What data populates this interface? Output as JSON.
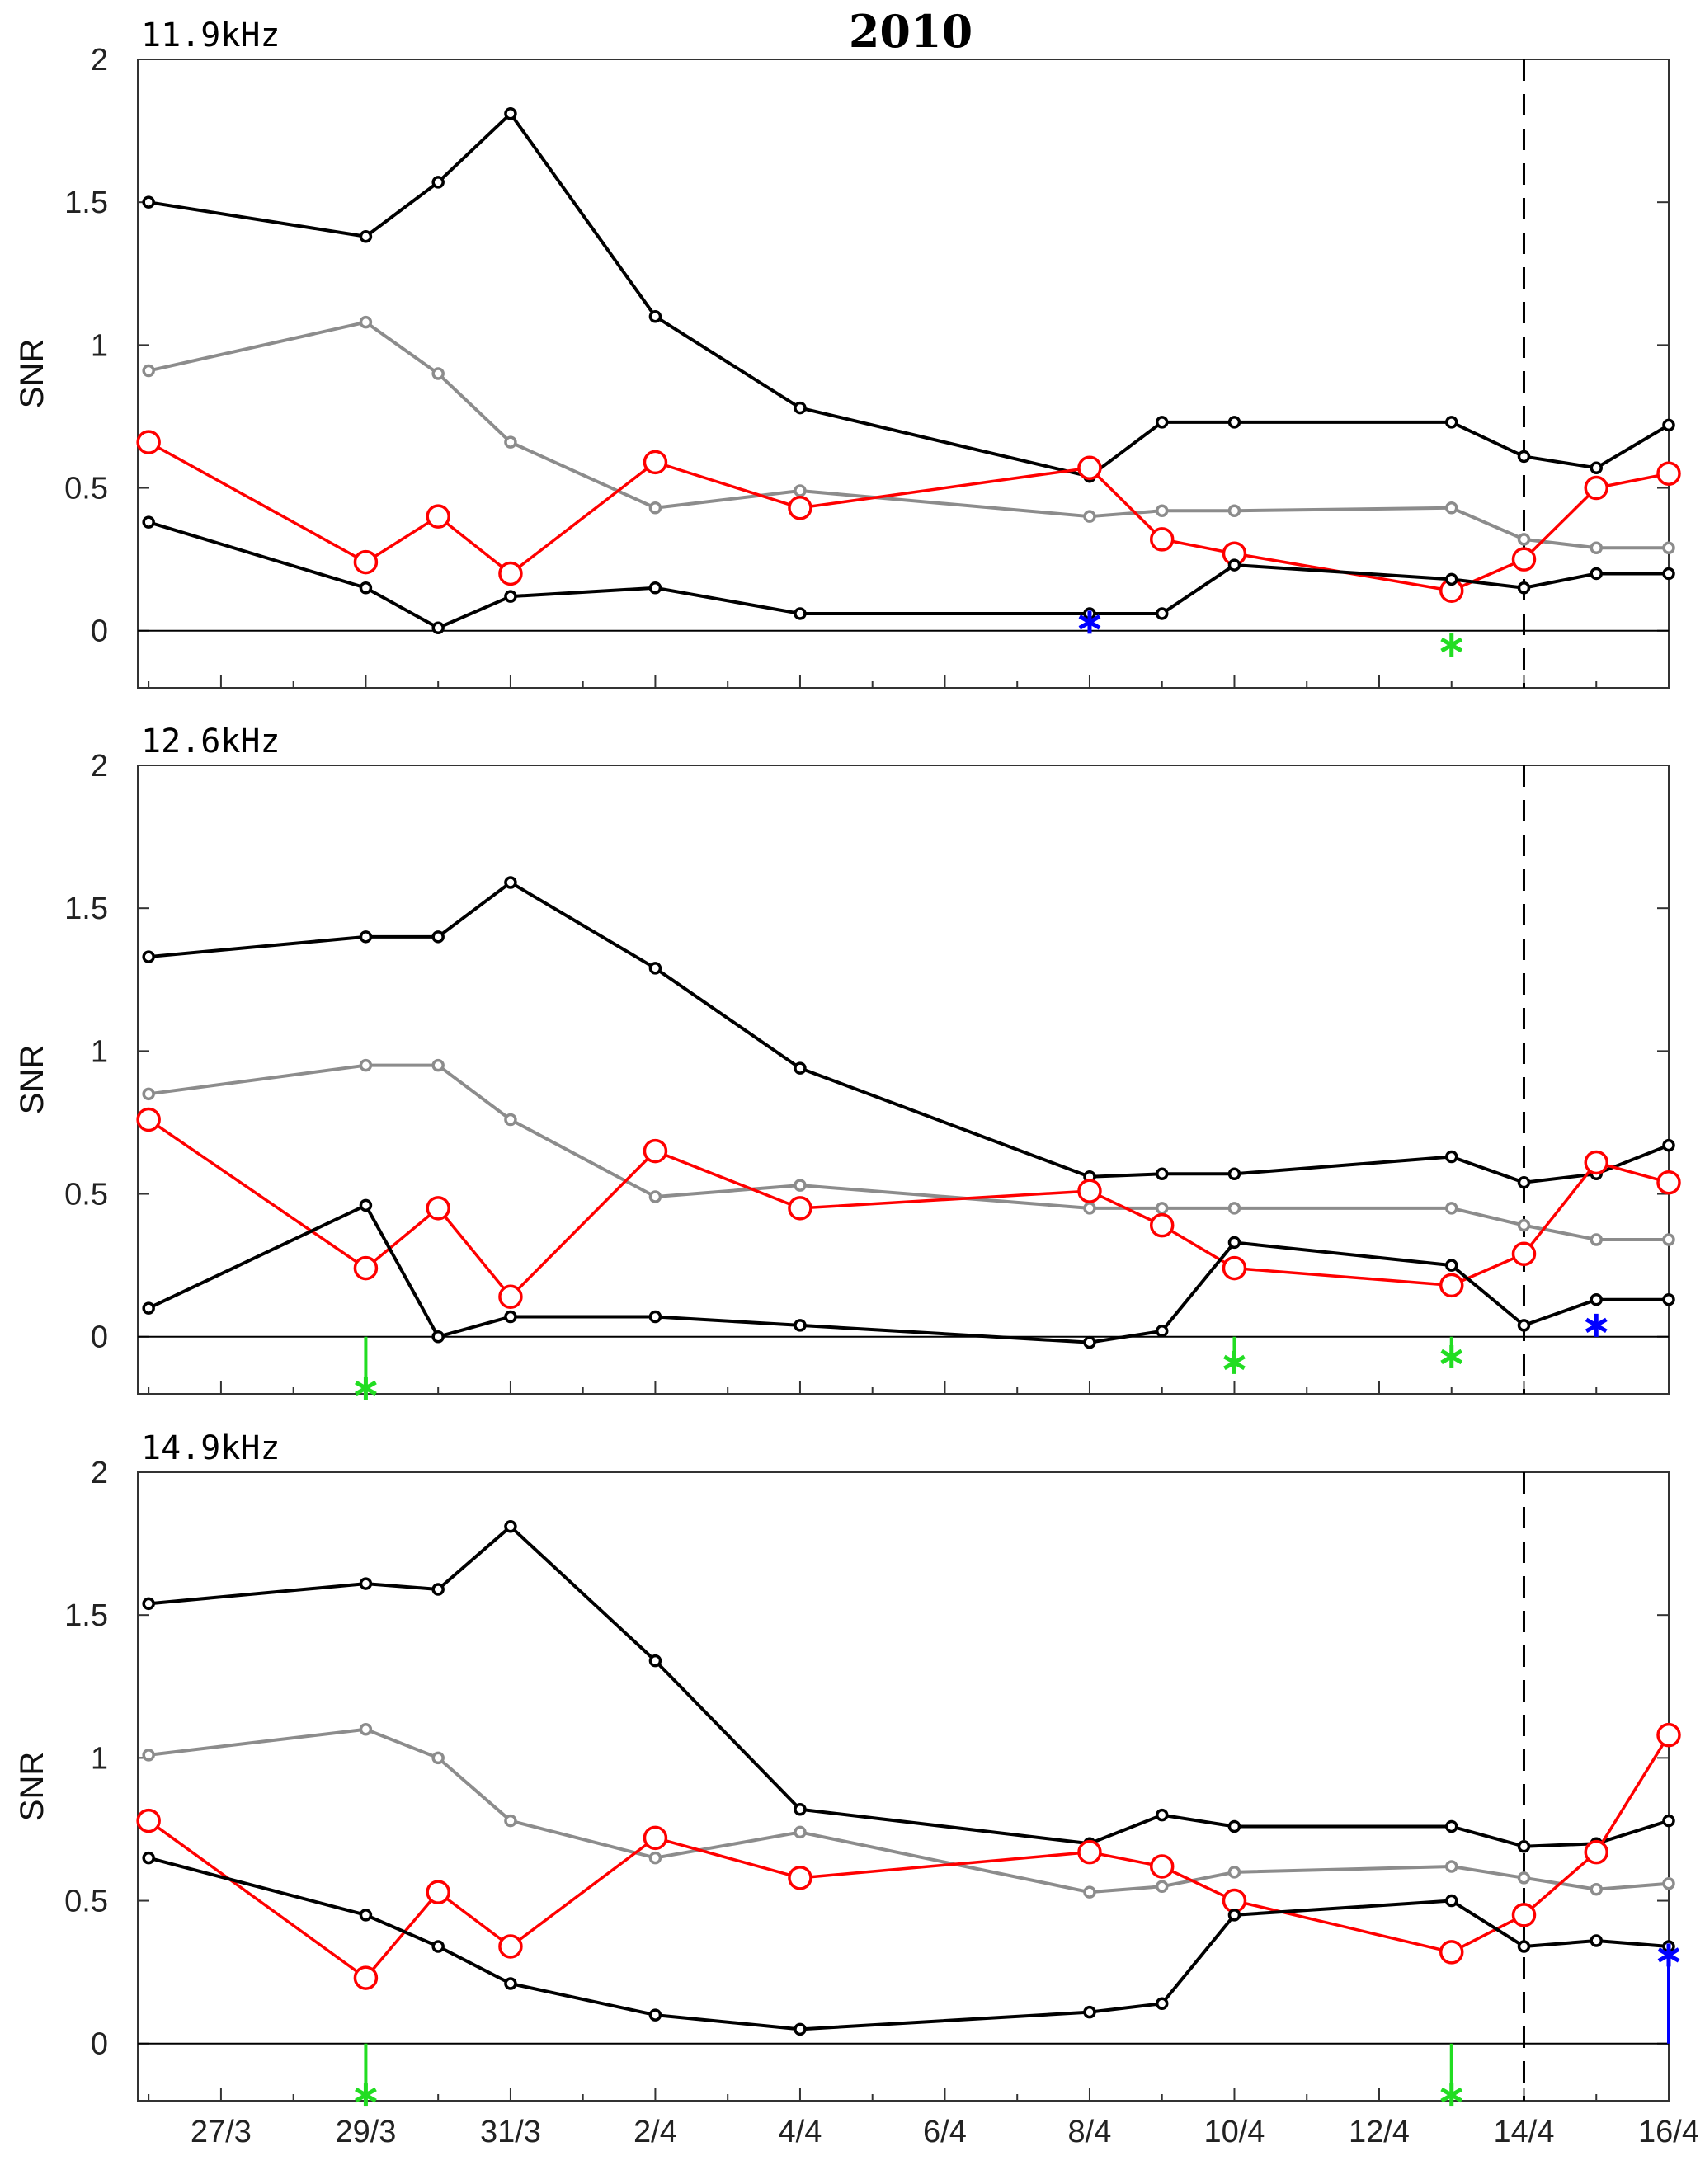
{
  "title": "2010",
  "colors": {
    "black_series": "#000000",
    "gray_series": "#8c8c8c",
    "red_series": "#ff0000",
    "green_marker": "#22dd22",
    "blue_marker": "#0000ff",
    "axis": "#333333"
  },
  "chart_data": [
    {
      "type": "line",
      "panel_label": "11.9kHz",
      "ylabel": "SNR",
      "ylim": [
        -0.2,
        2
      ],
      "yticks": [
        "0",
        "0.5",
        "1",
        "1.5",
        "2"
      ],
      "xtick_labels": [],
      "grid": false,
      "zero_line": true,
      "dashed_vline_x": "14/4",
      "series": [
        {
          "role": "upper",
          "color": "black",
          "marker": "small-circle",
          "points": [
            [
              "26/3",
              1.5
            ],
            [
              "29/3",
              1.38
            ],
            [
              "30/3",
              1.57
            ],
            [
              "31/3",
              1.81
            ],
            [
              "2/4",
              1.1
            ],
            [
              "4/4",
              0.78
            ],
            [
              "8/4",
              0.54
            ],
            [
              "9/4",
              0.73
            ],
            [
              "10/4",
              0.73
            ],
            [
              "13/4",
              0.73
            ],
            [
              "14/4",
              0.61
            ],
            [
              "15/4",
              0.57
            ],
            [
              "16/4",
              0.72
            ]
          ]
        },
        {
          "role": "mean",
          "color": "gray",
          "marker": "small-circle",
          "points": [
            [
              "26/3",
              0.91
            ],
            [
              "29/3",
              1.08
            ],
            [
              "30/3",
              0.9
            ],
            [
              "31/3",
              0.66
            ],
            [
              "2/4",
              0.43
            ],
            [
              "4/4",
              0.49
            ],
            [
              "8/4",
              0.4
            ],
            [
              "9/4",
              0.42
            ],
            [
              "10/4",
              0.42
            ],
            [
              "13/4",
              0.43
            ],
            [
              "14/4",
              0.32
            ],
            [
              "15/4",
              0.29
            ],
            [
              "16/4",
              0.29
            ]
          ]
        },
        {
          "role": "observed",
          "color": "red",
          "marker": "large-circle",
          "points": [
            [
              "26/3",
              0.66
            ],
            [
              "29/3",
              0.24
            ],
            [
              "30/3",
              0.4
            ],
            [
              "31/3",
              0.2
            ],
            [
              "2/4",
              0.59
            ],
            [
              "4/4",
              0.43
            ],
            [
              "8/4",
              0.57
            ],
            [
              "9/4",
              0.32
            ],
            [
              "10/4",
              0.27
            ],
            [
              "13/4",
              0.14
            ],
            [
              "14/4",
              0.25
            ],
            [
              "15/4",
              0.5
            ],
            [
              "16/4",
              0.55
            ]
          ]
        },
        {
          "role": "lower",
          "color": "black",
          "marker": "small-circle",
          "points": [
            [
              "26/3",
              0.38
            ],
            [
              "29/3",
              0.15
            ],
            [
              "30/3",
              0.01
            ],
            [
              "31/3",
              0.12
            ],
            [
              "2/4",
              0.15
            ],
            [
              "4/4",
              0.06
            ],
            [
              "8/4",
              0.06
            ],
            [
              "9/4",
              0.06
            ],
            [
              "10/4",
              0.23
            ],
            [
              "13/4",
              0.18
            ],
            [
              "14/4",
              0.15
            ],
            [
              "15/4",
              0.2
            ],
            [
              "16/4",
              0.2
            ]
          ]
        }
      ],
      "markers": [
        {
          "x": "8/4",
          "y": 0.03,
          "color": "blue",
          "symbol": "asterisk",
          "stem": false
        },
        {
          "x": "13/4",
          "y": -0.05,
          "color": "green",
          "symbol": "asterisk",
          "stem": false
        }
      ]
    },
    {
      "type": "line",
      "panel_label": "12.6kHz",
      "ylabel": "SNR",
      "ylim": [
        -0.2,
        2
      ],
      "yticks": [
        "0",
        "0.5",
        "1",
        "1.5",
        "2"
      ],
      "xtick_labels": [],
      "grid": false,
      "zero_line": true,
      "dashed_vline_x": "14/4",
      "series": [
        {
          "role": "upper",
          "color": "black",
          "marker": "small-circle",
          "points": [
            [
              "26/3",
              1.33
            ],
            [
              "29/3",
              1.4
            ],
            [
              "30/3",
              1.4
            ],
            [
              "31/3",
              1.59
            ],
            [
              "2/4",
              1.29
            ],
            [
              "4/4",
              0.94
            ],
            [
              "8/4",
              0.56
            ],
            [
              "9/4",
              0.57
            ],
            [
              "10/4",
              0.57
            ],
            [
              "13/4",
              0.63
            ],
            [
              "14/4",
              0.54
            ],
            [
              "15/4",
              0.57
            ],
            [
              "16/4",
              0.67
            ]
          ]
        },
        {
          "role": "mean",
          "color": "gray",
          "marker": "small-circle",
          "points": [
            [
              "26/3",
              0.85
            ],
            [
              "29/3",
              0.95
            ],
            [
              "30/3",
              0.95
            ],
            [
              "31/3",
              0.76
            ],
            [
              "2/4",
              0.49
            ],
            [
              "4/4",
              0.53
            ],
            [
              "8/4",
              0.45
            ],
            [
              "9/4",
              0.45
            ],
            [
              "10/4",
              0.45
            ],
            [
              "13/4",
              0.45
            ],
            [
              "14/4",
              0.39
            ],
            [
              "15/4",
              0.34
            ],
            [
              "16/4",
              0.34
            ]
          ]
        },
        {
          "role": "observed",
          "color": "red",
          "marker": "large-circle",
          "points": [
            [
              "26/3",
              0.76
            ],
            [
              "29/3",
              0.24
            ],
            [
              "30/3",
              0.45
            ],
            [
              "31/3",
              0.14
            ],
            [
              "2/4",
              0.65
            ],
            [
              "4/4",
              0.45
            ],
            [
              "8/4",
              0.51
            ],
            [
              "9/4",
              0.39
            ],
            [
              "10/4",
              0.24
            ],
            [
              "13/4",
              0.18
            ],
            [
              "14/4",
              0.29
            ],
            [
              "15/4",
              0.61
            ],
            [
              "16/4",
              0.54
            ]
          ]
        },
        {
          "role": "lower",
          "color": "black",
          "marker": "small-circle",
          "points": [
            [
              "26/3",
              0.1
            ],
            [
              "29/3",
              0.46
            ],
            [
              "30/3",
              0.0
            ],
            [
              "31/3",
              0.07
            ],
            [
              "2/4",
              0.07
            ],
            [
              "4/4",
              0.04
            ],
            [
              "8/4",
              -0.02
            ],
            [
              "9/4",
              0.02
            ],
            [
              "10/4",
              0.33
            ],
            [
              "13/4",
              0.25
            ],
            [
              "14/4",
              0.04
            ],
            [
              "15/4",
              0.13
            ],
            [
              "16/4",
              0.13
            ]
          ]
        }
      ],
      "markers": [
        {
          "x": "29/3",
          "y": -0.18,
          "color": "green",
          "symbol": "asterisk",
          "stem": true
        },
        {
          "x": "10/4",
          "y": -0.09,
          "color": "green",
          "symbol": "asterisk",
          "stem": true
        },
        {
          "x": "13/4",
          "y": -0.07,
          "color": "green",
          "symbol": "asterisk",
          "stem": true
        },
        {
          "x": "15/4",
          "y": 0.04,
          "color": "blue",
          "symbol": "asterisk",
          "stem": false
        }
      ]
    },
    {
      "type": "line",
      "panel_label": "14.9kHz",
      "ylabel": "SNR",
      "ylim": [
        -0.2,
        2
      ],
      "yticks": [
        "0",
        "0.5",
        "1",
        "1.5",
        "2"
      ],
      "xtick_labels": [
        "27/3",
        "29/3",
        "31/3",
        "2/4",
        "4/4",
        "6/4",
        "8/4",
        "10/4",
        "12/4",
        "14/4",
        "16/4"
      ],
      "grid": false,
      "zero_line": true,
      "dashed_vline_x": "14/4",
      "series": [
        {
          "role": "upper",
          "color": "black",
          "marker": "small-circle",
          "points": [
            [
              "26/3",
              1.54
            ],
            [
              "29/3",
              1.61
            ],
            [
              "30/3",
              1.59
            ],
            [
              "31/3",
              1.81
            ],
            [
              "2/4",
              1.34
            ],
            [
              "4/4",
              0.82
            ],
            [
              "8/4",
              0.7
            ],
            [
              "9/4",
              0.8
            ],
            [
              "10/4",
              0.76
            ],
            [
              "13/4",
              0.76
            ],
            [
              "14/4",
              0.69
            ],
            [
              "15/4",
              0.7
            ],
            [
              "16/4",
              0.78
            ]
          ]
        },
        {
          "role": "mean",
          "color": "gray",
          "marker": "small-circle",
          "points": [
            [
              "26/3",
              1.01
            ],
            [
              "29/3",
              1.1
            ],
            [
              "30/3",
              1.0
            ],
            [
              "31/3",
              0.78
            ],
            [
              "2/4",
              0.65
            ],
            [
              "4/4",
              0.74
            ],
            [
              "8/4",
              0.53
            ],
            [
              "9/4",
              0.55
            ],
            [
              "10/4",
              0.6
            ],
            [
              "13/4",
              0.62
            ],
            [
              "14/4",
              0.58
            ],
            [
              "15/4",
              0.54
            ],
            [
              "16/4",
              0.56
            ]
          ]
        },
        {
          "role": "observed",
          "color": "red",
          "marker": "large-circle",
          "points": [
            [
              "26/3",
              0.78
            ],
            [
              "29/3",
              0.23
            ],
            [
              "30/3",
              0.53
            ],
            [
              "31/3",
              0.34
            ],
            [
              "2/4",
              0.72
            ],
            [
              "4/4",
              0.58
            ],
            [
              "8/4",
              0.67
            ],
            [
              "9/4",
              0.62
            ],
            [
              "10/4",
              0.5
            ],
            [
              "13/4",
              0.32
            ],
            [
              "14/4",
              0.45
            ],
            [
              "15/4",
              0.67
            ],
            [
              "16/4",
              1.08
            ]
          ]
        },
        {
          "role": "lower",
          "color": "black",
          "marker": "small-circle",
          "points": [
            [
              "26/3",
              0.65
            ],
            [
              "29/3",
              0.45
            ],
            [
              "30/3",
              0.34
            ],
            [
              "31/3",
              0.21
            ],
            [
              "2/4",
              0.1
            ],
            [
              "4/4",
              0.05
            ],
            [
              "8/4",
              0.11
            ],
            [
              "9/4",
              0.14
            ],
            [
              "10/4",
              0.45
            ],
            [
              "13/4",
              0.5
            ],
            [
              "14/4",
              0.34
            ],
            [
              "15/4",
              0.36
            ],
            [
              "16/4",
              0.34
            ]
          ]
        }
      ],
      "markers": [
        {
          "x": "29/3",
          "y": -0.18,
          "color": "green",
          "symbol": "asterisk",
          "stem": true
        },
        {
          "x": "13/4",
          "y": -0.18,
          "color": "green",
          "symbol": "asterisk",
          "stem": true
        },
        {
          "x": "16/4",
          "y": 0.31,
          "color": "blue",
          "symbol": "asterisk",
          "stem": true
        }
      ]
    }
  ]
}
